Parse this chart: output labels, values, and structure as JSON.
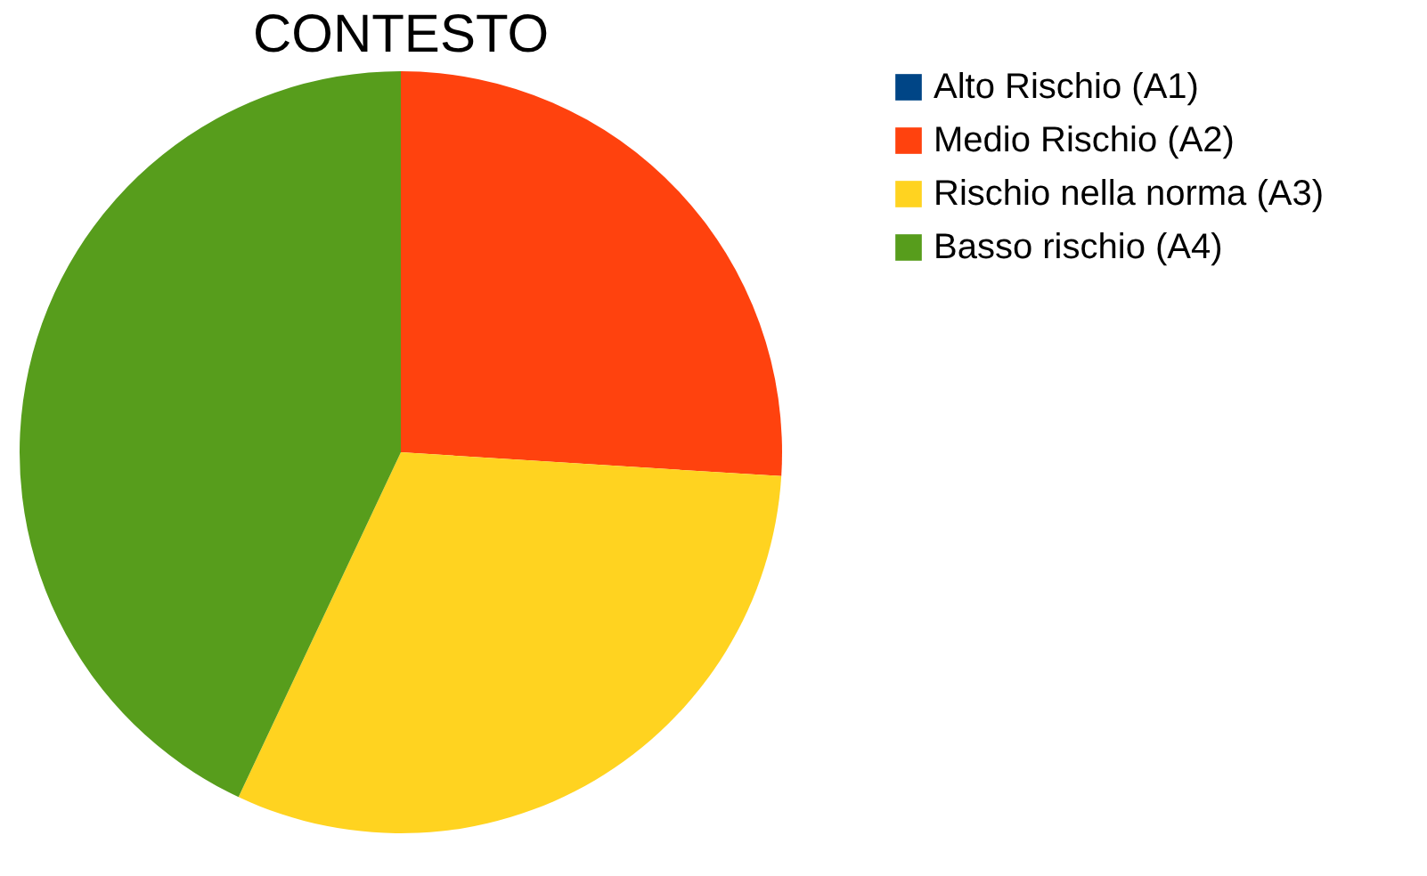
{
  "chart_data": {
    "type": "pie",
    "title": "CONTESTO",
    "categories": [
      "Alto Rischio (A1)",
      "Medio Rischio (A2)",
      "Rischio nella norma (A3)",
      "Basso rischio (A4)"
    ],
    "values": [
      0,
      26,
      31,
      43
    ],
    "colors": [
      "#004586",
      "#ff420e",
      "#ffd320",
      "#579d1c"
    ],
    "legend": "right"
  }
}
